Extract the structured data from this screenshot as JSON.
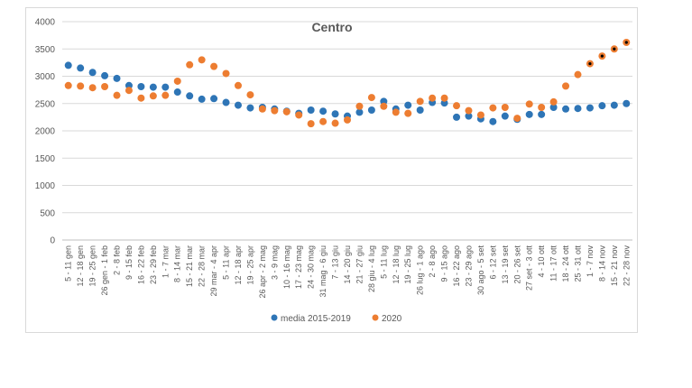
{
  "chart_data": {
    "type": "scatter",
    "title": "Centro",
    "xlabel": "",
    "ylabel": "",
    "ylim": [
      0,
      4000
    ],
    "yticks": [
      0,
      500,
      1000,
      1500,
      2000,
      2500,
      3000,
      3500,
      4000
    ],
    "grid": true,
    "legend_position": "bottom",
    "categories": [
      "5 - 11 gen",
      "12 - 18 gen",
      "19 - 25 gen",
      "26 gen - 1 feb",
      "2 - 8 feb",
      "9 - 15 feb",
      "16 - 22 feb",
      "23 - 29 feb",
      "1 - 7 mar",
      "8 - 14 mar",
      "15 - 21 mar",
      "22 - 28 mar",
      "29 mar - 4 apr",
      "5 - 11 apr",
      "12 - 18 apr",
      "19 - 25 apr",
      "26 apr - 2 mag",
      "3 - 9 mag",
      "10 - 16 mag",
      "17 - 23 mag",
      "24 - 30 mag",
      "31 mag - 6 giu",
      "7 - 13 giu",
      "14 - 20 giu",
      "21 - 27 giu",
      "28 giu - 4 lug",
      "5 - 11 lug",
      "12 - 18 lug",
      "19 - 25 lug",
      "26 lug - 1 ago",
      "2 - 8 ago",
      "9 - 15 ago",
      "16 - 22 ago",
      "23 - 29 ago",
      "30 ago - 5 set",
      "6 - 12 set",
      "13 - 19 set",
      "20 - 26 set",
      "27 set - 3 ott",
      "4 - 10 ott",
      "11 - 17 ott",
      "18 - 24 ott",
      "25 - 31 ott",
      "1 - 7 nov",
      "8 - 14 nov",
      "15 - 21 nov",
      "22 - 28 nov"
    ],
    "series": [
      {
        "name": "media 2015-2019",
        "color": "#2e75b6",
        "values": [
          3200,
          3150,
          3070,
          3010,
          2960,
          2830,
          2810,
          2800,
          2800,
          2710,
          2640,
          2580,
          2590,
          2520,
          2470,
          2420,
          2430,
          2400,
          2360,
          2320,
          2380,
          2360,
          2310,
          2270,
          2340,
          2380,
          2540,
          2400,
          2470,
          2380,
          2520,
          2510,
          2250,
          2270,
          2220,
          2170,
          2270,
          2210,
          2300,
          2300,
          2430,
          2400,
          2410,
          2420,
          2460,
          2470,
          2500
        ]
      },
      {
        "name": "2020",
        "color": "#ed7d31",
        "values": [
          2830,
          2820,
          2790,
          2810,
          2650,
          2740,
          2600,
          2640,
          2650,
          2910,
          3210,
          3300,
          3180,
          3050,
          2830,
          2660,
          2400,
          2370,
          2350,
          2290,
          2130,
          2170,
          2140,
          2200,
          2450,
          2610,
          2450,
          2340,
          2320,
          2540,
          2600,
          2600,
          2460,
          2370,
          2290,
          2420,
          2430,
          2230,
          2490,
          2430,
          2530,
          2820,
          3030,
          3230,
          3370,
          3500,
          3620
        ],
        "marked_points": [
          43,
          44,
          45,
          46
        ]
      }
    ]
  }
}
